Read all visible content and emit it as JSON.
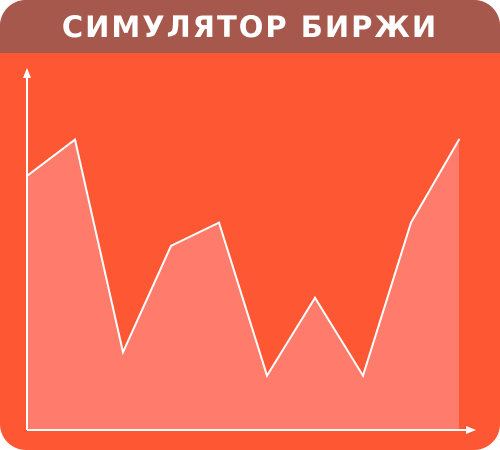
{
  "header": {
    "title": "СИМУЛЯТОР БИРЖИ"
  },
  "colors": {
    "background": "#fe5734",
    "title_bar": "#a6584d",
    "area_fill": "#ff7b6b",
    "line": "#ffffff",
    "axis": "#ffffff"
  },
  "chart_data": {
    "type": "area",
    "x": [
      0,
      1,
      2,
      3,
      4,
      5,
      6,
      7,
      8,
      9
    ],
    "series": [
      {
        "values": [
          9.8,
          11.2,
          3.0,
          7.1,
          8.0,
          2.1,
          5.1,
          2.1,
          8.0,
          11.2
        ]
      }
    ],
    "xlabel": "",
    "ylabel": "",
    "ylim": [
      0,
      13.5
    ],
    "grid": false
  }
}
